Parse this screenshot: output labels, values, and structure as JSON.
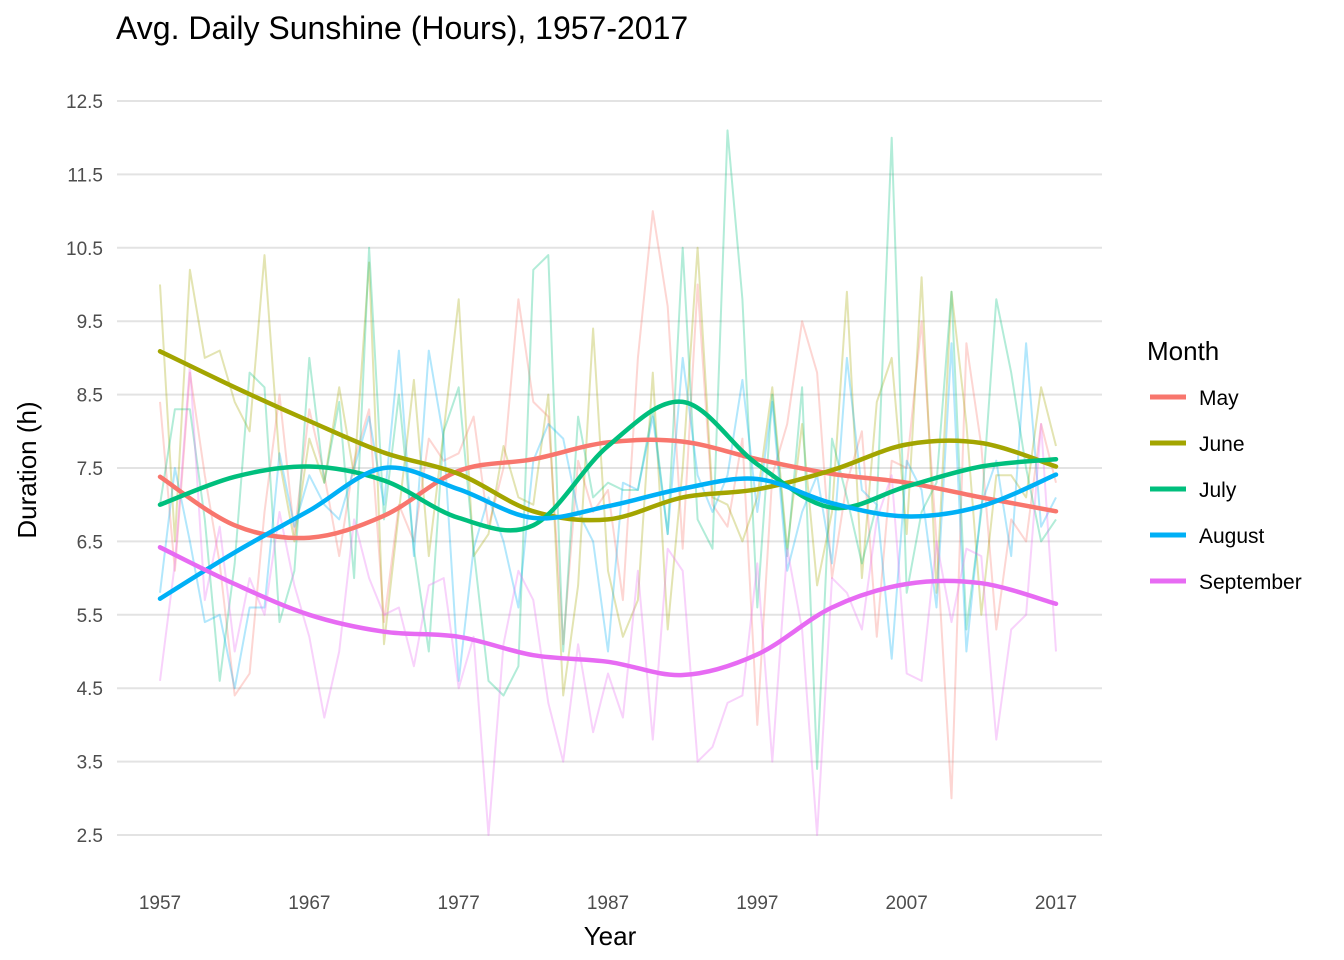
{
  "chart_data": {
    "type": "line",
    "title": "Avg. Daily Sunshine (Hours), 1957-2017",
    "xlabel": "Year",
    "ylabel": "Duration (h)",
    "xlim": [
      1957,
      2017
    ],
    "ylim": [
      2.5,
      12.5
    ],
    "x_ticks": [
      "1957",
      "1967",
      "1977",
      "1987",
      "1997",
      "2007",
      "2017"
    ],
    "y_ticks": [
      "2.5",
      "3.5",
      "4.5",
      "5.5",
      "6.5",
      "7.5",
      "8.5",
      "9.5",
      "10.5",
      "11.5",
      "12.5"
    ],
    "grid": true,
    "legend": {
      "title": "Month",
      "position": "right"
    },
    "smooth_x": [
      1957,
      1962,
      1967,
      1972,
      1977,
      1982,
      1987,
      1992,
      1997,
      2002,
      2007,
      2012,
      2017
    ],
    "series": [
      {
        "name": "May",
        "color": "#F8766D",
        "raw": [
          8.4,
          6.1,
          8.8,
          7.4,
          6.2,
          4.4,
          4.7,
          6.9,
          8.5,
          6.6,
          8.3,
          7.4,
          6.3,
          7.6,
          8.3,
          5.4,
          7.0,
          6.5,
          7.9,
          7.6,
          7.7,
          8.2,
          6.7,
          7.5,
          9.8,
          8.4,
          8.2,
          5.1,
          7.6,
          6.9,
          7.2,
          5.7,
          9.0,
          11.0,
          9.7,
          6.4,
          10.0,
          7.0,
          6.7,
          7.9,
          4.0,
          7.4,
          8.1,
          9.5,
          8.8,
          6.0,
          7.3,
          8.0,
          5.2,
          7.6,
          7.5,
          9.5,
          6.5,
          3.0,
          9.2,
          7.8,
          5.3,
          6.8,
          6.5,
          8.1,
          7.3
        ],
        "smooth": [
          7.38,
          6.72,
          6.55,
          6.85,
          7.46,
          7.62,
          7.85,
          7.86,
          7.62,
          7.42,
          7.3,
          7.1,
          6.91
        ]
      },
      {
        "name": "June",
        "color": "#A3A500",
        "raw": [
          10.0,
          6.5,
          10.2,
          9.0,
          9.1,
          8.4,
          8.0,
          10.4,
          7.6,
          6.5,
          7.9,
          7.3,
          8.6,
          7.4,
          10.3,
          5.1,
          6.9,
          8.7,
          6.3,
          8.0,
          9.8,
          6.3,
          6.6,
          7.8,
          7.1,
          7.0,
          8.5,
          4.4,
          5.9,
          9.4,
          6.1,
          5.2,
          5.7,
          8.8,
          5.3,
          7.5,
          10.5,
          7.1,
          7.0,
          6.5,
          7.1,
          8.6,
          6.4,
          8.1,
          5.9,
          6.9,
          9.9,
          6.0,
          8.4,
          9.0,
          6.6,
          10.1,
          5.8,
          9.9,
          8.1,
          5.5,
          7.4,
          7.4,
          7.1,
          8.6,
          7.8
        ],
        "smooth": [
          9.09,
          8.6,
          8.14,
          7.71,
          7.42,
          6.91,
          6.8,
          7.1,
          7.21,
          7.47,
          7.82,
          7.84,
          7.52
        ]
      },
      {
        "name": "July",
        "color": "#00BF7D",
        "raw": [
          7.0,
          8.3,
          8.3,
          6.8,
          4.6,
          6.2,
          8.8,
          8.6,
          5.4,
          6.1,
          9.0,
          7.3,
          8.4,
          6.0,
          10.5,
          6.8,
          8.5,
          6.4,
          5.0,
          8.0,
          8.6,
          6.4,
          4.6,
          4.4,
          4.8,
          10.2,
          10.4,
          5.0,
          8.2,
          7.1,
          7.3,
          7.2,
          7.2,
          8.3,
          6.6,
          10.5,
          6.8,
          6.4,
          12.1,
          9.8,
          5.6,
          8.5,
          6.3,
          8.6,
          3.4,
          7.9,
          7.1,
          6.2,
          7.0,
          12.0,
          5.8,
          6.9,
          7.3,
          9.9,
          5.3,
          6.9,
          9.8,
          8.8,
          7.5,
          6.5,
          6.8
        ],
        "smooth": [
          7.0,
          7.38,
          7.52,
          7.33,
          6.82,
          6.72,
          7.8,
          8.4,
          7.55,
          6.96,
          7.25,
          7.52,
          7.62
        ]
      },
      {
        "name": "August",
        "color": "#00B0F6",
        "raw": [
          5.8,
          7.5,
          6.5,
          5.4,
          5.5,
          4.5,
          5.6,
          5.6,
          7.7,
          6.7,
          7.4,
          7.0,
          6.8,
          7.5,
          8.2,
          7.0,
          9.1,
          6.3,
          9.1,
          7.9,
          4.6,
          6.4,
          7.1,
          6.5,
          5.6,
          7.6,
          8.1,
          7.9,
          6.9,
          6.5,
          5.0,
          7.3,
          7.2,
          8.2,
          6.6,
          9.0,
          7.4,
          6.9,
          7.4,
          8.7,
          6.9,
          8.4,
          6.1,
          6.9,
          7.4,
          6.2,
          9.0,
          7.2,
          7.0,
          4.9,
          7.6,
          7.2,
          5.6,
          9.2,
          5.0,
          7.0,
          7.6,
          6.3,
          9.2,
          6.7,
          7.1
        ],
        "smooth": [
          5.72,
          6.35,
          6.92,
          7.5,
          7.21,
          6.82,
          6.98,
          7.22,
          7.35,
          7.02,
          6.84,
          6.98,
          7.41
        ]
      },
      {
        "name": "September",
        "color": "#E76BF3",
        "raw": [
          4.6,
          6.2,
          8.9,
          5.7,
          6.7,
          5.0,
          6.0,
          5.5,
          6.9,
          5.9,
          5.2,
          4.1,
          5.0,
          6.8,
          6.0,
          5.5,
          5.6,
          4.8,
          5.9,
          6.0,
          4.5,
          5.2,
          2.5,
          5.1,
          6.1,
          5.7,
          4.3,
          3.5,
          5.1,
          3.9,
          4.7,
          4.1,
          6.1,
          3.8,
          6.4,
          6.1,
          3.5,
          3.7,
          4.3,
          4.4,
          6.2,
          3.5,
          6.4,
          5.3,
          2.5,
          6.0,
          5.8,
          5.3,
          6.8,
          7.4,
          4.7,
          4.6,
          6.5,
          5.4,
          6.4,
          6.3,
          3.8,
          5.3,
          5.5,
          8.1,
          5.0
        ],
        "smooth": [
          6.42,
          5.92,
          5.5,
          5.27,
          5.2,
          4.95,
          4.86,
          4.68,
          4.96,
          5.6,
          5.92,
          5.93,
          5.65
        ]
      }
    ]
  }
}
